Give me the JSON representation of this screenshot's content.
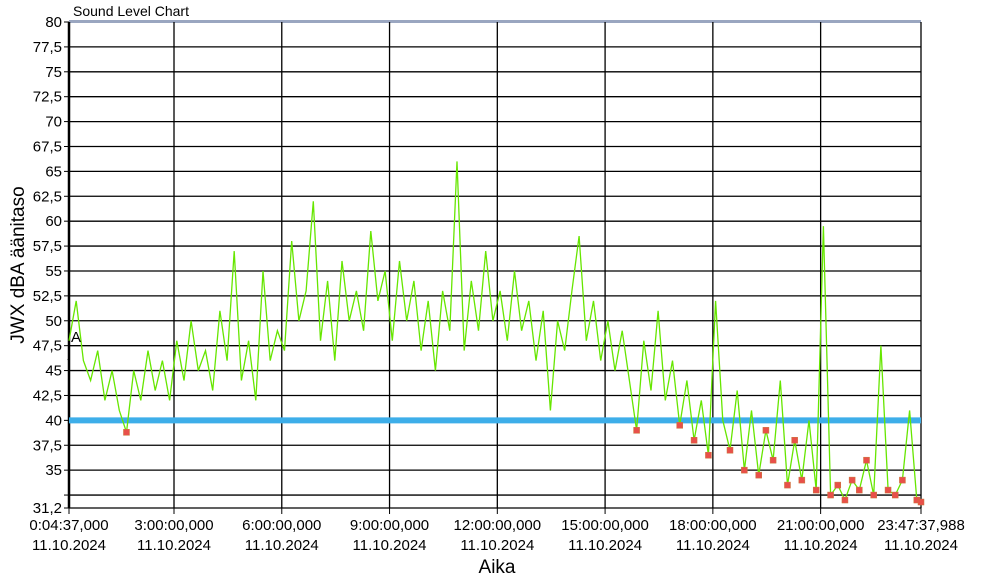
{
  "chart_data": {
    "type": "line",
    "title": "Sound Level Chart",
    "xlabel": "Aika",
    "ylabel": "JWX dBA äänitaso",
    "ylim": [
      31.2,
      80
    ],
    "xlim_hours": [
      0.077,
      23.794
    ],
    "y_ticks": [
      {
        "v": 80,
        "label": "80"
      },
      {
        "v": 77.5,
        "label": "77,5"
      },
      {
        "v": 75,
        "label": "75"
      },
      {
        "v": 72.5,
        "label": "72,5"
      },
      {
        "v": 70,
        "label": "70"
      },
      {
        "v": 67.5,
        "label": "67,5"
      },
      {
        "v": 65,
        "label": "65"
      },
      {
        "v": 62.5,
        "label": "62,5"
      },
      {
        "v": 60,
        "label": "60"
      },
      {
        "v": 57.5,
        "label": "57,5"
      },
      {
        "v": 55,
        "label": "55"
      },
      {
        "v": 52.5,
        "label": "52,5"
      },
      {
        "v": 50,
        "label": "50"
      },
      {
        "v": 47.5,
        "label": "47,5"
      },
      {
        "v": 45,
        "label": "45"
      },
      {
        "v": 42.5,
        "label": "42,5"
      },
      {
        "v": 40,
        "label": "40"
      },
      {
        "v": 37.5,
        "label": "37,5"
      },
      {
        "v": 35,
        "label": "35"
      },
      {
        "v": 32.5,
        "label": ""
      },
      {
        "v": 31.2,
        "label": "31,2"
      }
    ],
    "x_ticks": [
      {
        "h": 0.077,
        "time": "0:04:37,000",
        "date": "11.10.2024"
      },
      {
        "h": 3,
        "time": "3:00:00,000",
        "date": "11.10.2024"
      },
      {
        "h": 6,
        "time": "6:00:00,000",
        "date": "11.10.2024"
      },
      {
        "h": 9,
        "time": "9:00:00,000",
        "date": "11.10.2024"
      },
      {
        "h": 12,
        "time": "12:00:00,000",
        "date": "11.10.2024"
      },
      {
        "h": 15,
        "time": "15:00:00,000",
        "date": "11.10.2024"
      },
      {
        "h": 18,
        "time": "18:00:00,000",
        "date": "11.10.2024"
      },
      {
        "h": 21,
        "time": "21:00:00,000",
        "date": "11.10.2024"
      },
      {
        "h": 23.794,
        "time": "23:47:37,988",
        "date": "11.10.2024"
      }
    ],
    "threshold": {
      "value": 40,
      "color": "#3daee9"
    },
    "marker_label": "A",
    "series": [
      {
        "name": "JWX dBA",
        "color": "#66e600",
        "below_threshold_marker_color": "#e8504a",
        "start_hour": 0.077,
        "step_hours": 0.2,
        "values": [
          48,
          52,
          46,
          44,
          47,
          42,
          45,
          41,
          38.8,
          45,
          42,
          47,
          43,
          46,
          42,
          48,
          44,
          50,
          45,
          47,
          43,
          51,
          46,
          57,
          44,
          48,
          42,
          55,
          46,
          49,
          47,
          58,
          50,
          53,
          62,
          48,
          54,
          46,
          56,
          50,
          53,
          49,
          59,
          52,
          55,
          48,
          56,
          50,
          54,
          47,
          52,
          45,
          53,
          49,
          66,
          47,
          54,
          49,
          57,
          50,
          53,
          48,
          55,
          49,
          52,
          46,
          51,
          41,
          50,
          47,
          53,
          58.5,
          48,
          52,
          46,
          50,
          45,
          49,
          44,
          39,
          48,
          43,
          51,
          42,
          46,
          39.5,
          44,
          38,
          42,
          36.5,
          52,
          40,
          37,
          43,
          35,
          41,
          34.5,
          39,
          36,
          44,
          33.5,
          38,
          34,
          40,
          33,
          59.5,
          32.5,
          33.5,
          32,
          34,
          33,
          36,
          32.5,
          47.5,
          33,
          32.5,
          34,
          41,
          32,
          31.8
        ]
      }
    ]
  }
}
